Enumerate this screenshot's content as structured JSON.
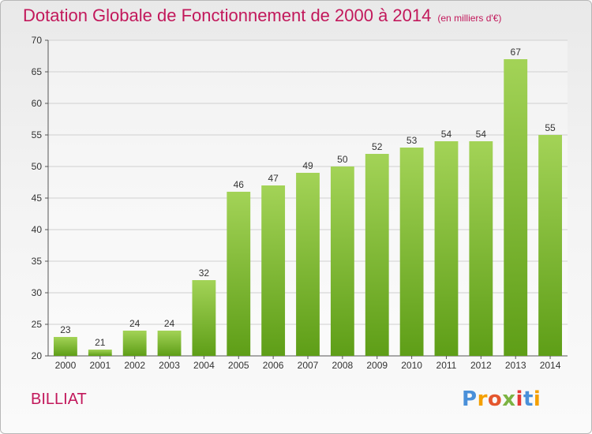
{
  "header": {
    "title": "Dotation Globale de Fonctionnement de 2000 à 2014",
    "unit": "(en milliers d'€)"
  },
  "footer": {
    "commune": "BILLIAT",
    "logo": [
      "P",
      "r",
      "o",
      "x",
      "i",
      "t",
      "i"
    ]
  },
  "colors": {
    "title": "#c2185b",
    "bar_top": "#a3d357",
    "bar_bottom": "#5e9e17"
  },
  "chart_data": {
    "type": "bar",
    "categories": [
      "2000",
      "2001",
      "2002",
      "2003",
      "2004",
      "2005",
      "2006",
      "2007",
      "2008",
      "2009",
      "2010",
      "2011",
      "2012",
      "2013",
      "2014"
    ],
    "values": [
      23,
      21,
      24,
      24,
      32,
      46,
      47,
      49,
      50,
      52,
      53,
      54,
      54,
      67,
      55
    ],
    "ylim": [
      20,
      70
    ],
    "yticks": [
      "20",
      "25",
      "30",
      "35",
      "40",
      "45",
      "50",
      "55",
      "60",
      "65",
      "70"
    ],
    "grid": true,
    "legend": "none"
  }
}
